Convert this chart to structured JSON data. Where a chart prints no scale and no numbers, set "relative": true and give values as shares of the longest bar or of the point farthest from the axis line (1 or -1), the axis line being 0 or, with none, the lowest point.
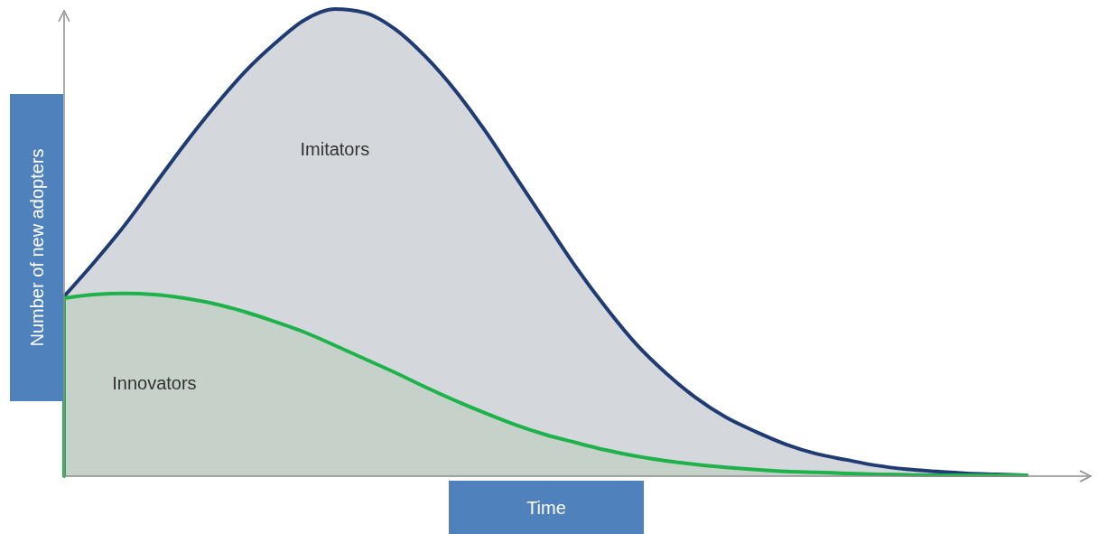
{
  "chart_data": {
    "type": "area",
    "xlabel": "Time",
    "ylabel": "Number of new adopters",
    "relative": true,
    "categories": [
      null,
      null,
      null,
      null,
      null,
      null,
      null,
      null,
      null,
      null,
      null,
      null,
      null,
      null,
      null,
      null,
      null,
      null,
      null,
      null,
      null,
      null,
      null,
      null,
      null,
      null,
      null,
      null,
      null,
      null,
      null,
      null,
      null
    ],
    "series": [
      {
        "name": "Imitators",
        "color": "#1f3b73",
        "values": [
          0.385,
          0.458,
          0.536,
          0.623,
          0.71,
          0.791,
          0.865,
          0.926,
          0.977,
          1,
          0.992,
          0.957,
          0.899,
          0.826,
          0.739,
          0.642,
          0.545,
          0.449,
          0.362,
          0.284,
          0.221,
          0.168,
          0.126,
          0.095,
          0.068,
          0.048,
          0.035,
          0.023,
          0.015,
          0.01,
          0.006,
          0.004,
          0.002
        ]
      },
      {
        "name": "Innovators",
        "color": "#1db34a",
        "values": [
          0.381,
          0.389,
          0.391,
          0.389,
          0.381,
          0.369,
          0.352,
          0.331,
          0.308,
          0.28,
          0.251,
          0.222,
          0.191,
          0.162,
          0.135,
          0.11,
          0.089,
          0.072,
          0.056,
          0.043,
          0.033,
          0.025,
          0.019,
          0.014,
          0.01,
          0.008,
          0.006,
          0.004,
          0.003,
          0.002,
          0.002,
          0.002,
          0.002
        ]
      }
    ]
  }
}
